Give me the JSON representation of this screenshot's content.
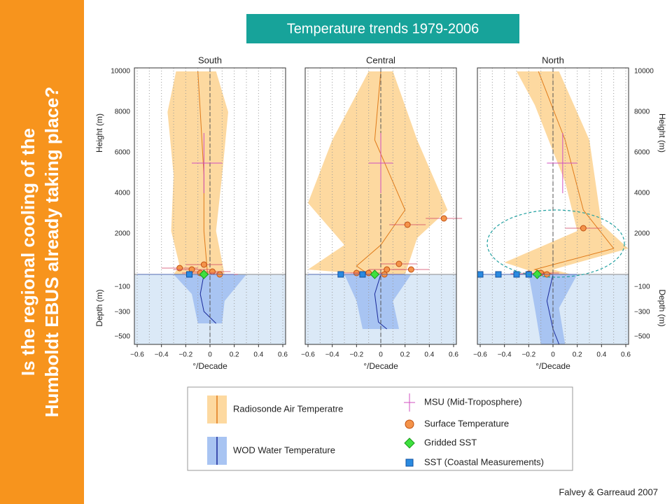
{
  "sidebar": {
    "lines": [
      "Is the regional cooling of the",
      "Humboldt EBUS already taking place?"
    ]
  },
  "title": "Temperature trends 1979-2006",
  "panels": [
    {
      "title": "South"
    },
    {
      "title": "Central"
    },
    {
      "title": "North"
    }
  ],
  "height_axis": {
    "label": "Height (m)",
    "ticks": [
      "10000",
      "8000",
      "6000",
      "4000",
      "2000"
    ]
  },
  "depth_axis": {
    "label": "Depth (m)",
    "ticks": [
      "−100",
      "−300",
      "−500"
    ]
  },
  "x_axis": {
    "label": "°/Decade",
    "ticks": [
      "−0.6",
      "−0.4",
      "−0.2",
      "0",
      "0.2",
      "0.4",
      "0.6"
    ]
  },
  "legend": [
    "Radiosonde Air Temperatre",
    "WOD Water Temperature",
    "MSU (Mid-Troposphere)",
    "Surface Temperature",
    "Gridded SST",
    "SST (Coastal Measurements)"
  ],
  "credit": "Falvey & Garreaud  2007"
}
